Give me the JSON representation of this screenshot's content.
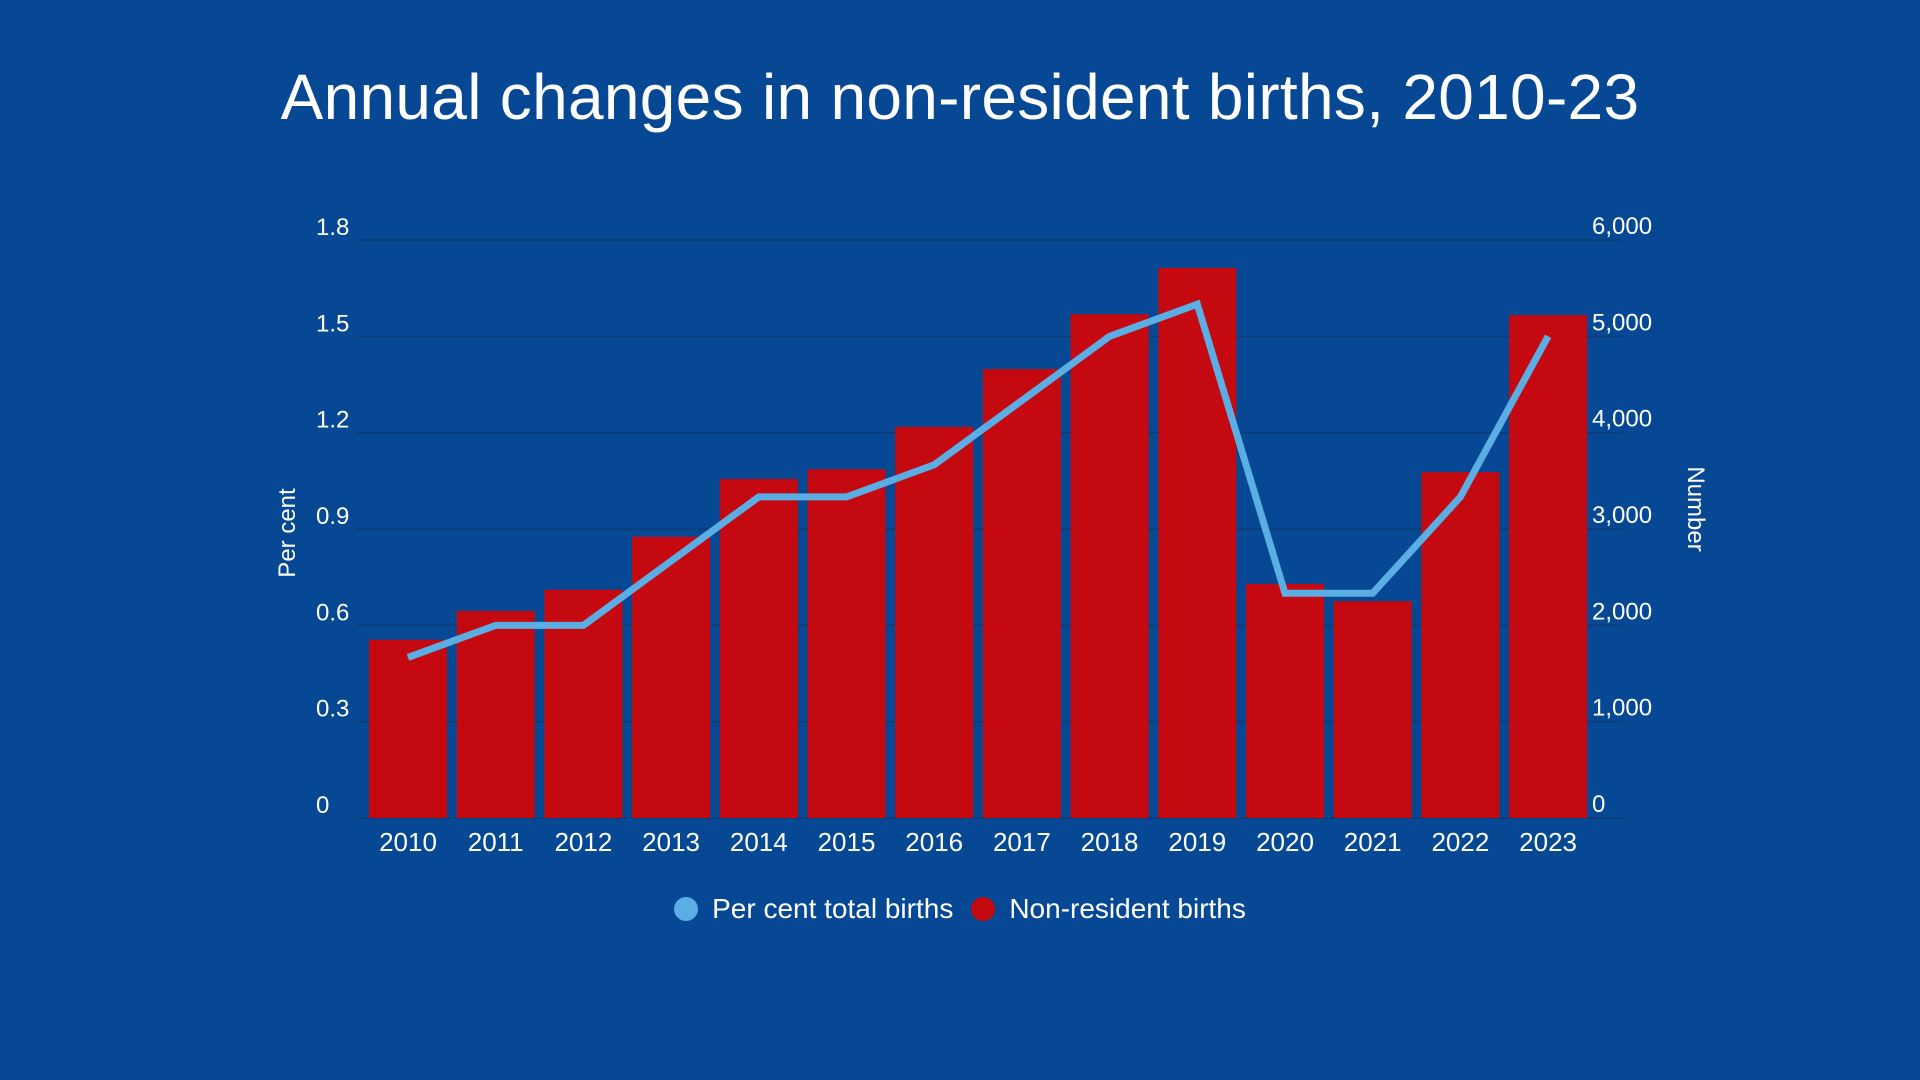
{
  "colors": {
    "background": "#074894",
    "bars": "#c40a10",
    "line": "#5aaee3",
    "gridlines": "#0a3a75",
    "text": "#ffffff"
  },
  "legend": {
    "line_label": "Per cent total births",
    "bar_label": "Non-resident births"
  },
  "chart_data": {
    "type": "bar",
    "title": "Annual changes in non-resident births, 2010-23",
    "legend_position": "bottom",
    "grid": true,
    "categories": [
      "2010",
      "2011",
      "2012",
      "2013",
      "2014",
      "2015",
      "2016",
      "2017",
      "2018",
      "2019",
      "2020",
      "2021",
      "2022",
      "2023"
    ],
    "left_axis": {
      "label": "Per cent",
      "ticks": [
        "0",
        "0.3",
        "0.6",
        "0.9",
        "1.2",
        "1.5",
        "1.8"
      ],
      "range": [
        0,
        1.8
      ]
    },
    "right_axis": {
      "label": "Number",
      "ticks": [
        "0",
        "1,000",
        "2,000",
        "3,000",
        "4,000",
        "5,000",
        "6,000"
      ],
      "range": [
        0,
        6000
      ]
    },
    "series": [
      {
        "name": "Non-resident births",
        "type": "bar",
        "axis": "right",
        "values": [
          1850,
          2150,
          2370,
          2920,
          3520,
          3620,
          4060,
          4660,
          5230,
          5710,
          2430,
          2250,
          3590,
          5220
        ]
      },
      {
        "name": "Per cent total births",
        "type": "line",
        "axis": "left",
        "values": [
          0.5,
          0.6,
          0.6,
          0.8,
          1.0,
          1.0,
          1.1,
          1.3,
          1.5,
          1.6,
          0.7,
          0.7,
          1.0,
          1.5
        ]
      }
    ]
  }
}
